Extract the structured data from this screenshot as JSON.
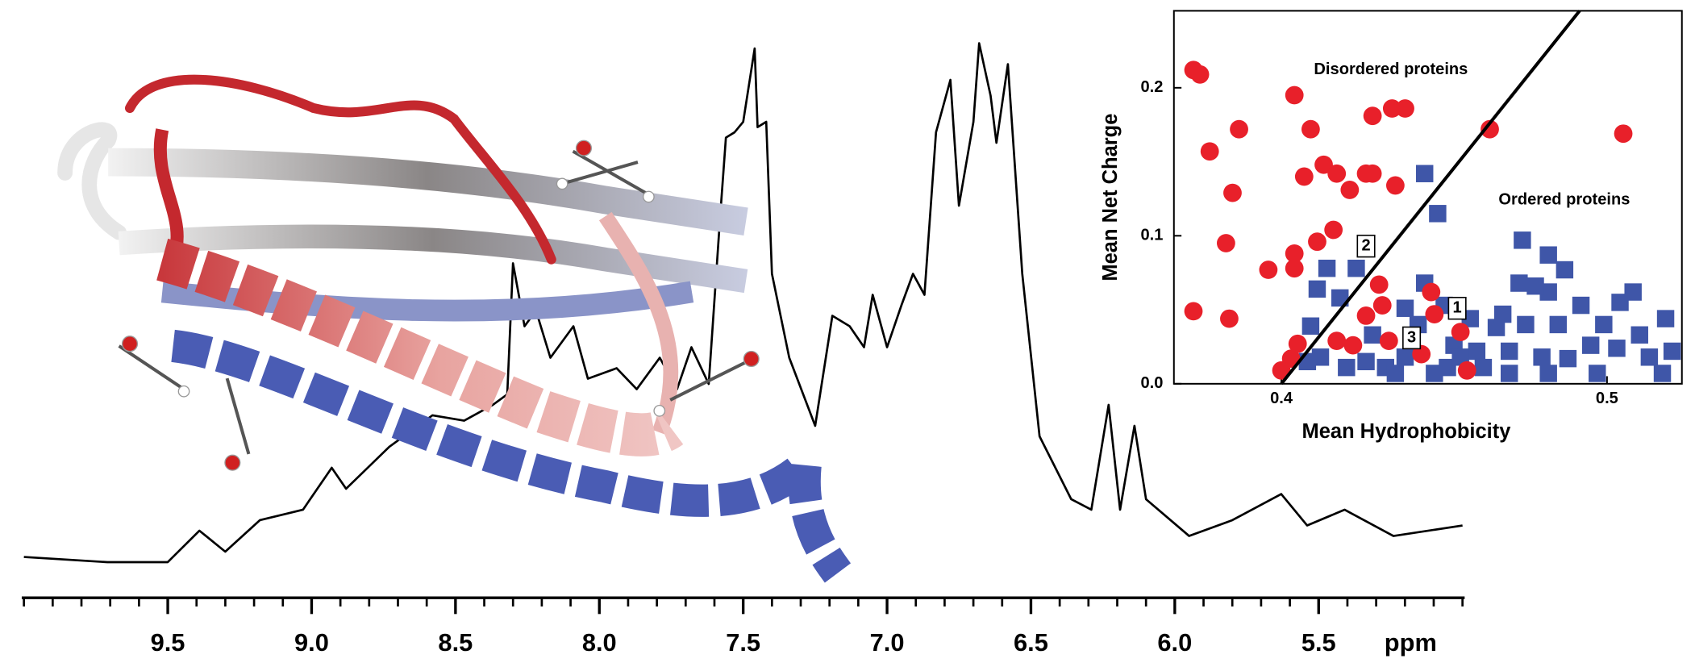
{
  "chart_data": [
    {
      "type": "line",
      "xlabel": "ppm",
      "xlim": [
        10.0,
        5.0
      ],
      "xticks": [
        9.5,
        {
          "value": 9.0,
          "label": "9.0"
        },
        8.5,
        {
          "value": 8.0,
          "label": "8.0"
        },
        7.5,
        {
          "value": 7.0,
          "label": "7.0"
        },
        6.5,
        {
          "value": 6.0,
          "label": "6.0"
        },
        5.5
      ],
      "xminorticks": [
        10.0,
        9.9,
        9.8,
        9.7,
        9.6,
        9.5,
        9.4,
        9.3,
        9.2,
        9.1,
        9.0,
        8.9,
        8.8,
        8.7,
        8.6,
        8.5,
        8.4,
        8.3,
        8.2,
        8.1,
        8.0,
        7.9,
        7.8,
        7.7,
        7.6,
        7.5,
        7.4,
        7.3,
        7.2,
        7.1,
        7.0,
        6.9,
        6.8,
        6.7,
        6.6,
        6.5,
        6.4,
        6.3,
        6.2,
        6.1,
        6.0,
        5.9,
        5.8,
        5.7,
        5.6,
        5.5,
        5.4,
        5.3,
        5.2,
        5.1,
        5.0
      ],
      "color": "#000000",
      "x": [
        10.0,
        9.71,
        9.5,
        9.39,
        9.3,
        9.18,
        9.03,
        8.93,
        8.88,
        8.73,
        8.58,
        8.47,
        8.37,
        8.32,
        8.3,
        8.26,
        8.22,
        8.17,
        8.09,
        8.04,
        7.94,
        7.87,
        7.79,
        7.73,
        7.68,
        7.62,
        7.58,
        7.56,
        7.53,
        7.5,
        7.46,
        7.45,
        7.42,
        7.4,
        7.34,
        7.25,
        7.19,
        7.13,
        7.08,
        7.05,
        7.0,
        6.95,
        6.91,
        6.87,
        6.83,
        6.78,
        6.75,
        6.7,
        6.68,
        6.64,
        6.62,
        6.58,
        6.53,
        6.47,
        6.36,
        6.29,
        6.23,
        6.19,
        6.14,
        6.1,
        5.95,
        5.8,
        5.63,
        5.54,
        5.41,
        5.24,
        5.0
      ],
      "values": [
        2,
        1,
        1,
        7,
        3,
        9,
        11,
        19,
        15,
        23,
        29,
        28,
        31,
        33,
        58,
        46,
        49,
        40,
        46,
        36,
        38,
        34,
        40,
        34,
        42,
        35,
        67,
        82,
        83,
        85,
        99,
        84,
        85,
        56,
        40,
        27,
        48,
        46,
        42,
        52,
        42,
        50,
        56,
        52,
        83,
        93,
        69,
        85,
        100,
        90,
        81,
        96,
        56,
        25,
        13,
        11,
        31,
        11,
        27,
        13,
        6,
        9,
        14,
        8,
        11,
        6,
        8
      ]
    },
    {
      "type": "scatter",
      "xlabel": "Mean Hydrophobicity",
      "ylabel": "Mean Net Charge",
      "xlim": [
        0.367,
        0.523
      ],
      "ylim": [
        0,
        0.252
      ],
      "xticks": [
        0.4,
        0.5
      ],
      "yticks": [
        {
          "value": 0,
          "label": "0.0"
        },
        0.1,
        0.2
      ],
      "boundary": {
        "x": [
          0.4,
          0.4916
        ],
        "y": [
          0,
          0.252
        ],
        "color": "#000000"
      },
      "series": [
        {
          "color": "#3f56a8",
          "marker": "square",
          "x": [
            0.444,
            0.448,
            0.411,
            0.414,
            0.423,
            0.418,
            0.409,
            0.412,
            0.408,
            0.42,
            0.426,
            0.428,
            0.432,
            0.438,
            0.442,
            0.438,
            0.444,
            0.45,
            0.453,
            0.451,
            0.458,
            0.46,
            0.462,
            0.466,
            0.468,
            0.47,
            0.473,
            0.475,
            0.48,
            0.482,
            0.482,
            0.487,
            0.474,
            0.485,
            0.488,
            0.492,
            0.495,
            0.499,
            0.504,
            0.503,
            0.508,
            0.51,
            0.513,
            0.518,
            0.52,
            0.478,
            0.455,
            0.447,
            0.435,
            0.47,
            0.497,
            0.482,
            0.517
          ],
          "values": [
            0.142,
            0.115,
            0.064,
            0.078,
            0.078,
            0.058,
            0.039,
            0.018,
            0.015,
            0.011,
            0.015,
            0.033,
            0.011,
            0.051,
            0.04,
            0.018,
            0.068,
            0.053,
            0.026,
            0.011,
            0.044,
            0.022,
            0.011,
            0.038,
            0.047,
            0.022,
            0.068,
            0.04,
            0.018,
            0.062,
            0.087,
            0.077,
            0.097,
            0.04,
            0.017,
            0.053,
            0.026,
            0.04,
            0.055,
            0.024,
            0.062,
            0.033,
            0.018,
            0.044,
            0.022,
            0.066,
            0.018,
            0.007,
            0.007,
            0.007,
            0.007,
            0.007,
            0.007
          ]
        },
        {
          "color": "#e8202a",
          "marker": "circle",
          "x": [
            0.373,
            0.375,
            0.378,
            0.387,
            0.385,
            0.383,
            0.384,
            0.373,
            0.396,
            0.404,
            0.409,
            0.407,
            0.413,
            0.411,
            0.416,
            0.404,
            0.404,
            0.421,
            0.417,
            0.426,
            0.428,
            0.428,
            0.434,
            0.438,
            0.435,
            0.43,
            0.431,
            0.426,
            0.417,
            0.422,
            0.433,
            0.443,
            0.446,
            0.447,
            0.455,
            0.457,
            0.405,
            0.403,
            0.4,
            0.464,
            0.505
          ],
          "values": [
            0.212,
            0.209,
            0.157,
            0.172,
            0.129,
            0.095,
            0.044,
            0.049,
            0.077,
            0.195,
            0.172,
            0.14,
            0.148,
            0.096,
            0.104,
            0.088,
            0.078,
            0.131,
            0.142,
            0.142,
            0.142,
            0.181,
            0.186,
            0.186,
            0.134,
            0.067,
            0.053,
            0.046,
            0.029,
            0.026,
            0.029,
            0.02,
            0.062,
            0.047,
            0.035,
            0.009,
            0.027,
            0.017,
            0.009,
            0.172,
            0.169
          ]
        }
      ],
      "annotations": [
        {
          "text": "Disordered proteins",
          "x": 0.41,
          "y": 0.212
        },
        {
          "text": "Ordered proteins",
          "x": 0.4667,
          "y": 0.124
        },
        {
          "text": "1",
          "boxed": true,
          "x": 0.454,
          "y": 0.051
        },
        {
          "text": "2",
          "boxed": true,
          "x": 0.426,
          "y": 0.093
        },
        {
          "text": "3",
          "boxed": true,
          "x": 0.44,
          "y": 0.031
        }
      ]
    }
  ]
}
